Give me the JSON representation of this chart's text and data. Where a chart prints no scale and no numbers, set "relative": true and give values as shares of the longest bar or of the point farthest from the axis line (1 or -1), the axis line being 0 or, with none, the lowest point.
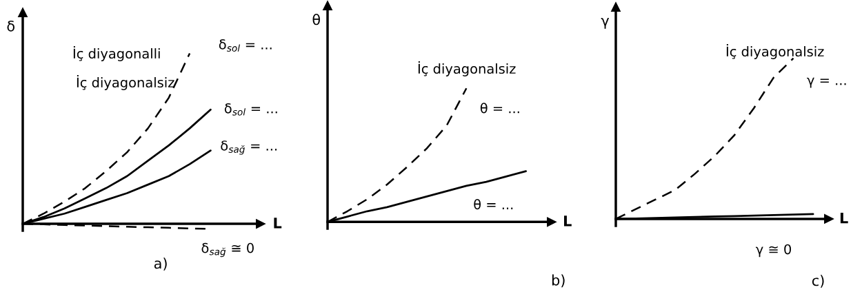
{
  "chart_data": [
    {
      "type": "line",
      "relative": true,
      "title": "a)",
      "xlabel": "L",
      "ylabel": "δ",
      "tick_labels": false,
      "categories": [
        null,
        null,
        null,
        null,
        null,
        null,
        null,
        null,
        null,
        null
      ],
      "series": [
        {
          "name": "δ$_{sol}$ = ...",
          "color": "#000000",
          "line_style": "dashed",
          "values": [
            0,
            0.06,
            0.13,
            0.21,
            0.31,
            0.42,
            0.56,
            0.74,
            1.0,
            null
          ]
        },
        {
          "name": "δ$_{sol}$ = ...",
          "color": "#000000",
          "line_style": "solid",
          "values": [
            0,
            0.04,
            0.09,
            0.15,
            0.21,
            0.28,
            0.37,
            0.46,
            0.56,
            0.67
          ]
        },
        {
          "name": "δ$_{sağ}$ = ...",
          "color": "#000000",
          "line_style": "solid",
          "values": [
            0,
            0.03,
            0.06,
            0.1,
            0.14,
            0.18,
            0.23,
            0.28,
            0.35,
            0.43
          ]
        },
        {
          "name": "δ$_{sağ}$ ≅ 0",
          "color": "#000000",
          "line_style": "dashed",
          "values": [
            0,
            -0.003,
            -0.007,
            -0.01,
            -0.013,
            -0.017,
            -0.02,
            -0.023,
            -0.027,
            -0.03
          ]
        }
      ],
      "annotations": [
        "İç diyagonalli",
        "İç diyagonalsiz"
      ]
    },
    {
      "type": "line",
      "relative": true,
      "title": "b)",
      "xlabel": "L",
      "ylabel": "θ",
      "tick_labels": false,
      "categories": [
        null,
        null,
        null,
        null,
        null,
        null,
        null,
        null,
        null,
        null,
        null
      ],
      "series": [
        {
          "name": "θ = ...",
          "color": "#000000",
          "line_style": "dashed",
          "values": [
            0,
            0.08,
            0.17,
            0.28,
            0.41,
            0.55,
            0.72,
            1.0,
            null,
            null,
            null
          ]
        },
        {
          "name": "θ = ...",
          "color": "#000000",
          "line_style": "solid",
          "values": [
            0,
            0.04,
            0.08,
            0.11,
            0.15,
            0.19,
            0.23,
            0.27,
            0.3,
            0.34,
            0.38
          ]
        }
      ],
      "annotations": [
        "İç diyagonalsiz"
      ]
    },
    {
      "type": "line",
      "relative": true,
      "title": "c)",
      "xlabel": "L",
      "ylabel": "γ",
      "tick_labels": false,
      "categories": [
        null,
        null,
        null,
        null,
        null,
        null,
        null,
        null,
        null,
        null,
        null
      ],
      "series": [
        {
          "name": "γ = ...",
          "color": "#000000",
          "line_style": "dashed",
          "values": [
            0,
            0.06,
            0.12,
            0.18,
            0.28,
            0.39,
            0.52,
            0.69,
            0.88,
            1.0,
            null
          ]
        },
        {
          "name": "γ ≅ 0",
          "color": "#000000",
          "line_style": "solid",
          "values": [
            0,
            0.003,
            0.006,
            0.009,
            0.012,
            0.015,
            0.018,
            0.021,
            0.024,
            0.027,
            0.03
          ]
        }
      ],
      "annotations": [
        "İç diyagonalsiz"
      ]
    }
  ]
}
